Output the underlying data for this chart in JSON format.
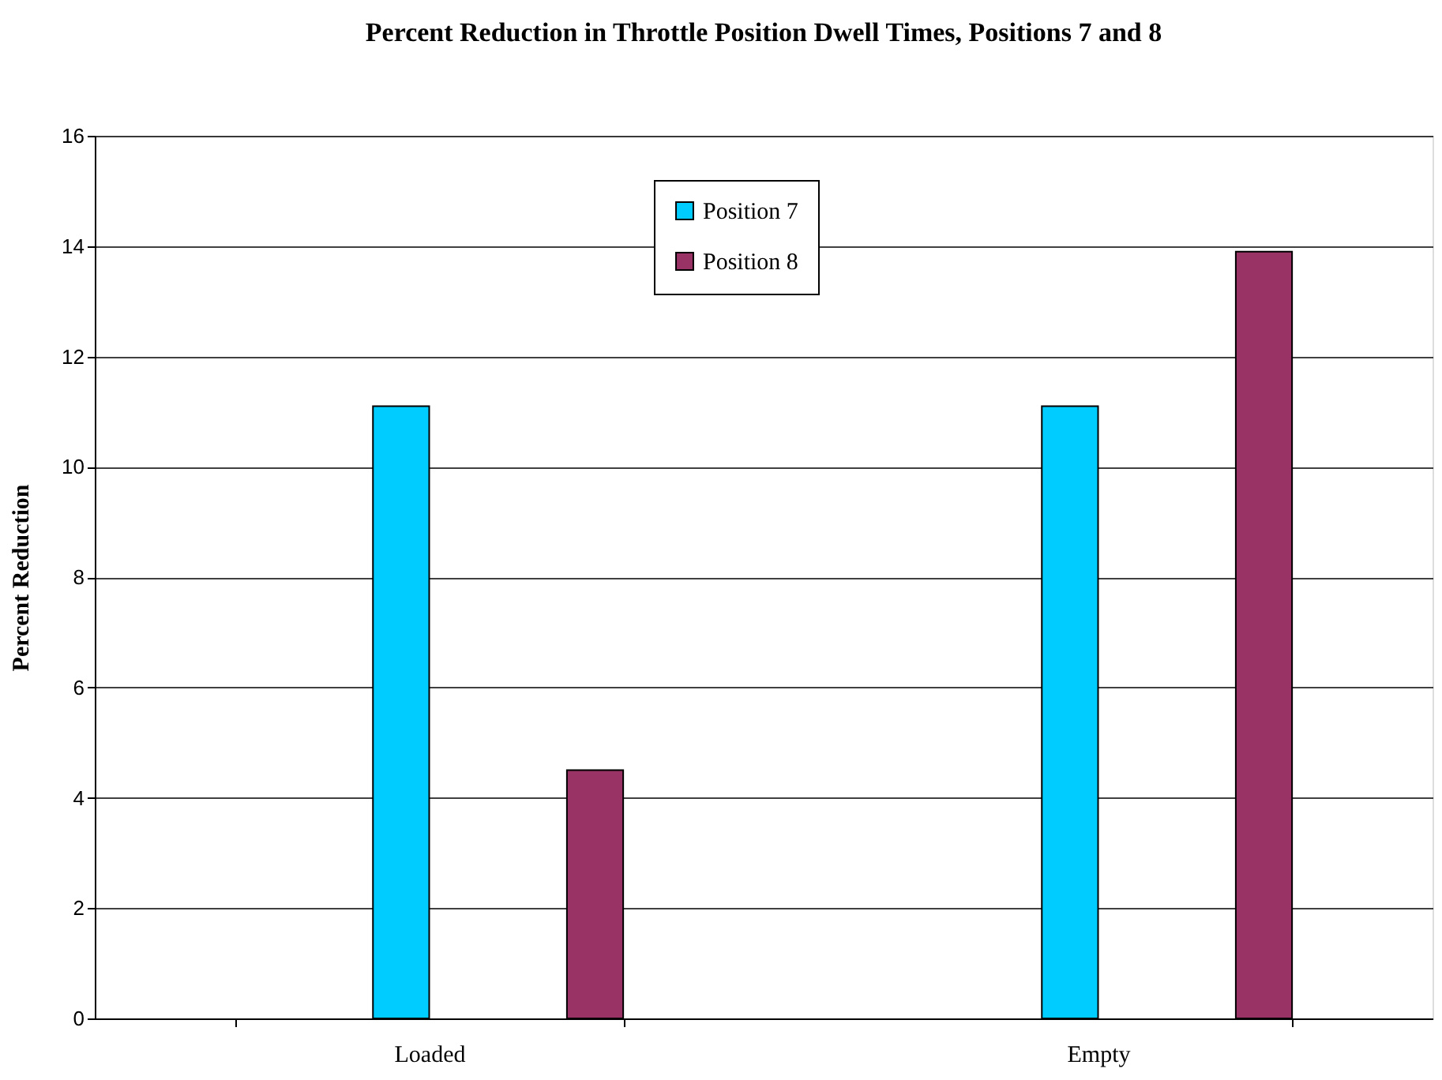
{
  "chart_data": {
    "type": "bar",
    "title": "Percent Reduction in Throttle Position Dwell Times, Positions 7 and 8",
    "ylabel": "Percent Reduction",
    "categories": [
      "Loaded",
      "Empty"
    ],
    "series": [
      {
        "name": "Position 7",
        "color": "#00ccff",
        "values": [
          11.1,
          11.1
        ]
      },
      {
        "name": "Position 8",
        "color": "#993366",
        "values": [
          4.5,
          13.9
        ]
      }
    ],
    "ylim": [
      0,
      16
    ],
    "yticks": [
      0,
      2,
      4,
      6,
      8,
      10,
      12,
      14,
      16
    ],
    "grid": "y",
    "legend": "top"
  }
}
